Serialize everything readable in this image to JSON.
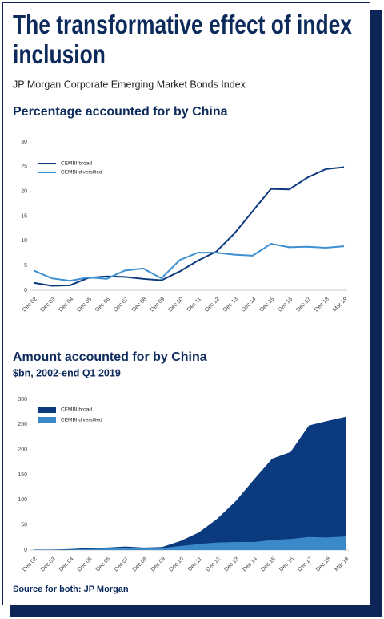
{
  "header": {
    "title": "The transformative effect of index inclusion",
    "subtitle": "JP Morgan Corporate Emerging Market Bonds Index"
  },
  "chart_data": [
    {
      "type": "line",
      "title": "Percentage accounted for by China",
      "categories": [
        "Dec 02",
        "Dec 03",
        "Dec 04",
        "Dec 05",
        "Dec 06",
        "Dec 07",
        "Dec 08",
        "Dec 09",
        "Dec 10",
        "Dec 11",
        "Dec 12",
        "Dec 13",
        "Dec 14",
        "Dec 15",
        "Dec 16",
        "Dec 17",
        "Dec 18",
        "Mar 19"
      ],
      "series": [
        {
          "name": "CEMBI broad",
          "color": "#0b3a7e",
          "values": [
            1.5,
            0.9,
            1.0,
            2.5,
            2.8,
            2.7,
            2.3,
            2.0,
            3.8,
            6.0,
            7.8,
            11.5,
            16,
            20.5,
            20.4,
            22.8,
            24.5,
            24.9
          ]
        },
        {
          "name": "CEMBI diversified",
          "color": "#3d8fd1",
          "values": [
            4.0,
            2.4,
            1.9,
            2.6,
            2.3,
            4.0,
            4.4,
            2.4,
            6.1,
            7.6,
            7.6,
            7.2,
            7.0,
            9.4,
            8.7,
            8.8,
            8.6,
            8.9
          ]
        }
      ],
      "ylim": [
        0,
        30
      ],
      "yticks": [
        0,
        5,
        10,
        15,
        20,
        25,
        30
      ]
    },
    {
      "type": "area",
      "title": "Amount accounted for by China",
      "subtitle": "$bn, 2002-end Q1 2019",
      "categories": [
        "Dec 02",
        "Dec 03",
        "Dec 04",
        "Dec 05",
        "Dec 06",
        "Dec 07",
        "Dec 08",
        "Dec 09",
        "Dec 10",
        "Dec 11",
        "Dec 12",
        "Dec 13",
        "Dec 14",
        "Dec 15",
        "Dec 16",
        "Dec 17",
        "Dec 18",
        "Mar 19"
      ],
      "series": [
        {
          "name": "CEMBI broad",
          "color": "#0b3a7e",
          "values": [
            1,
            1,
            2,
            4,
            5,
            7,
            5,
            6,
            18,
            35,
            62,
            97,
            140,
            182,
            195,
            248,
            257,
            265
          ]
        },
        {
          "name": "CEMBI diversified",
          "color": "#3a89c9",
          "values": [
            0.5,
            0.5,
            1,
            2,
            3,
            4,
            3,
            4,
            8,
            12,
            15,
            16,
            16,
            20,
            22,
            26,
            25,
            27
          ]
        }
      ],
      "ylim": [
        0,
        300
      ],
      "yticks": [
        0,
        50,
        100,
        150,
        200,
        250,
        300
      ]
    }
  ],
  "footer": {
    "source": "Source for both: JP Morgan"
  }
}
